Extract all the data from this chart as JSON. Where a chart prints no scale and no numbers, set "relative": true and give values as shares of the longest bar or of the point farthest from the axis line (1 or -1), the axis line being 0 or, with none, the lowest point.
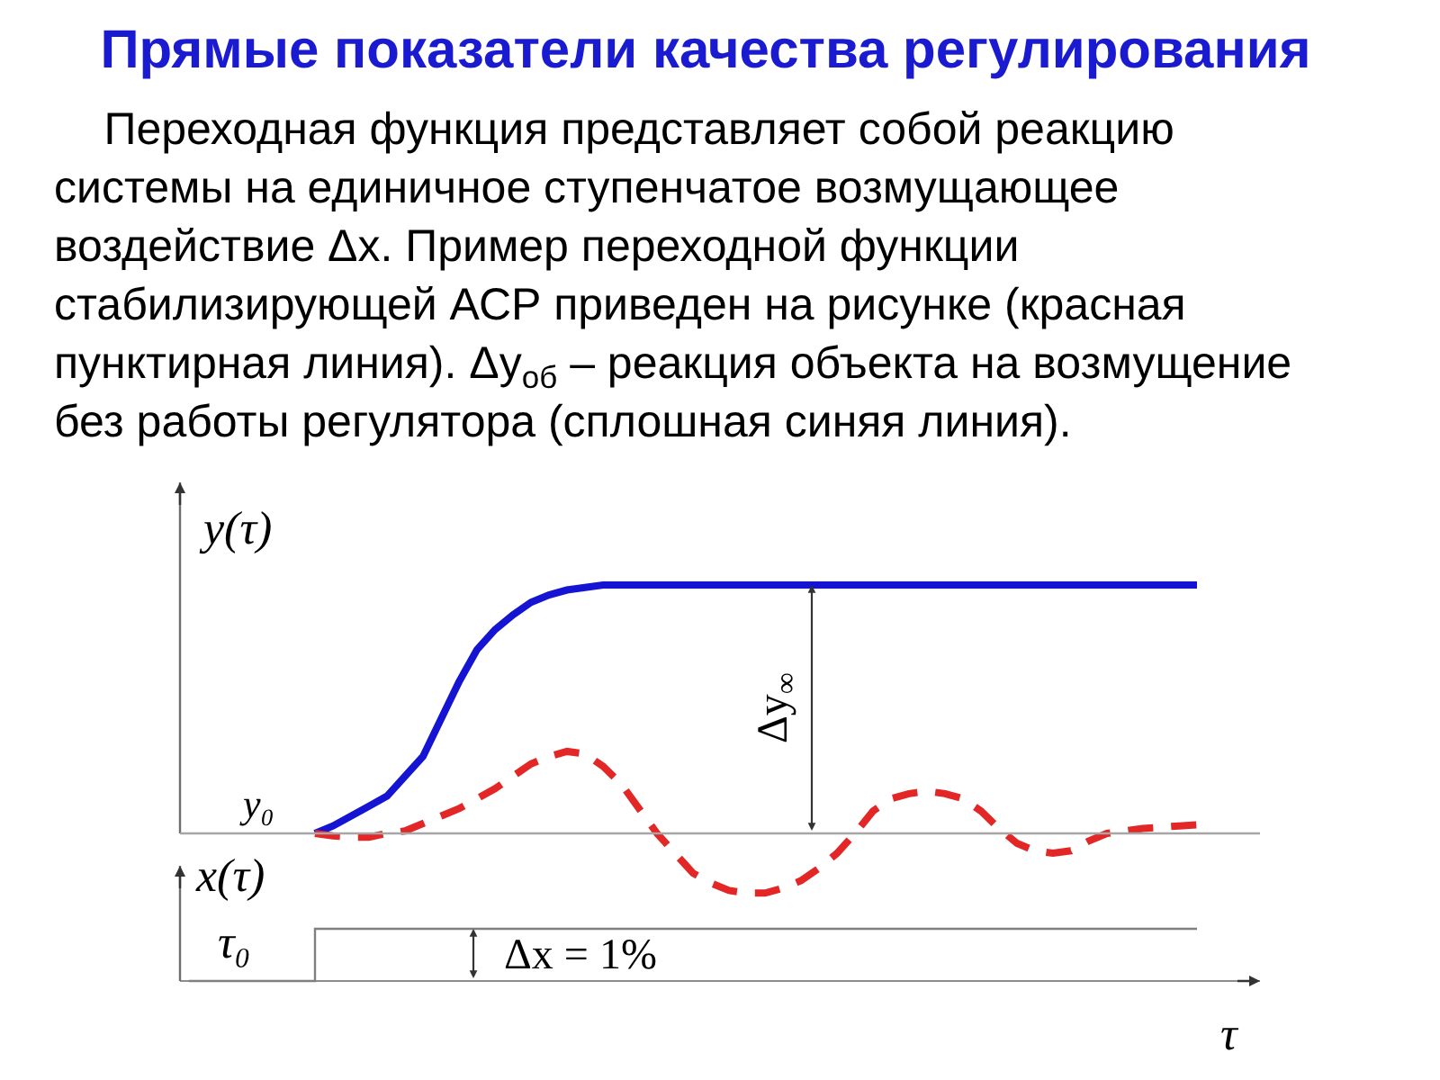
{
  "chart_data": [
    {
      "type": "line",
      "title": "Прямые показатели качества регулирования",
      "subtitle": "Переходная функция представляет собой реакцию системы на единичное ступенчатое возмущающее воздействие Δx. Пример переходной функции стабилизирующей АСР приведен на рисунке (красная пунктирная линия). Δy$_{об}$ – реакция объекта на возмущение без работы регулятора (сплошная синяя линия).",
      "ylabel": "y(τ)",
      "relative": true,
      "categories": [
        null,
        null,
        null,
        null,
        null,
        null,
        null,
        null,
        null,
        null,
        null,
        null,
        null,
        null,
        null,
        null,
        null,
        null,
        null,
        null,
        null,
        null,
        null,
        null,
        null,
        null,
        null,
        null,
        null,
        null,
        null,
        null,
        null,
        null,
        null,
        null,
        null,
        null,
        null,
        null,
        null,
        null,
        null,
        null,
        null,
        null,
        null,
        null,
        null,
        null,
        null,
        null,
        null,
        null,
        null,
        null,
        null,
        null,
        null,
        null
      ],
      "series": [
        {
          "color": "#1414d2",
          "line_style": "solid",
          "values": [
            null,
            null,
            null,
            null,
            null,
            null,
            null,
            0,
            0.03,
            0.07,
            0.11,
            0.15,
            0.23,
            0.31,
            0.46,
            0.61,
            0.74,
            0.82,
            0.88,
            0.93,
            0.96,
            0.98,
            0.99,
            1,
            1,
            1,
            1,
            1,
            1,
            1,
            1,
            1,
            1,
            1,
            1,
            1,
            1,
            1,
            1,
            1,
            1,
            1,
            1,
            1,
            1,
            1,
            1,
            1,
            1,
            1,
            1,
            1,
            1,
            1,
            1,
            1,
            1,
            null,
            null,
            null
          ]
        },
        {
          "color": "#e32626",
          "line_style": "dashed",
          "values": [
            null,
            null,
            null,
            null,
            null,
            null,
            null,
            0,
            -0.01,
            -0.015,
            -0.015,
            0,
            0.01,
            0.04,
            0.07,
            0.1,
            0.14,
            0.18,
            0.23,
            0.28,
            0.31,
            0.33,
            0.32,
            0.27,
            0.2,
            0.1,
            0,
            -0.08,
            -0.16,
            -0.2,
            -0.23,
            -0.24,
            -0.24,
            -0.22,
            -0.19,
            -0.14,
            -0.08,
            0,
            0.09,
            0.14,
            0.16,
            0.17,
            0.16,
            0.14,
            0.09,
            0.02,
            -0.04,
            -0.07,
            -0.08,
            -0.07,
            -0.03,
            0,
            0.01,
            0.02,
            0.025,
            0.03,
            0.035,
            null,
            null,
            null
          ]
        }
      ],
      "ref_lines": [
        {
          "axis": "y",
          "value": 0,
          "label": "y₀",
          "color": "#a6a6a6"
        }
      ],
      "annotations": [
        {
          "text": "Δy$_{∞}$",
          "y": 1
        }
      ]
    },
    {
      "type": "step",
      "ylabel": "x(τ)",
      "xlabel": "τ",
      "relative": true,
      "categories": [
        null,
        null,
        null,
        null,
        null,
        null,
        null,
        null,
        null,
        null,
        null,
        null,
        null,
        null,
        null,
        null,
        null,
        null,
        null,
        null,
        null,
        null,
        null,
        null,
        null,
        null,
        null,
        null,
        null,
        null,
        null,
        null,
        null,
        null,
        null,
        null,
        null,
        null,
        null,
        null,
        null,
        null,
        null,
        null,
        null,
        null,
        null,
        null,
        null,
        null,
        null,
        null,
        null,
        null,
        null,
        null,
        null,
        null,
        null,
        null
      ],
      "series": [
        {
          "color": "#808080",
          "values": [
            0,
            0,
            0,
            0,
            0,
            0,
            0,
            1,
            1,
            1,
            1,
            1,
            1,
            1,
            1,
            1,
            1,
            1,
            1,
            1,
            1,
            1,
            1,
            1,
            1,
            1,
            1,
            1,
            1,
            1,
            1,
            1,
            1,
            1,
            1,
            1,
            1,
            1,
            1,
            1,
            1,
            1,
            1,
            1,
            1,
            1,
            1,
            1,
            1,
            1,
            1,
            1,
            1,
            1,
            1,
            1,
            1,
            null,
            null,
            null
          ]
        }
      ],
      "annotations": [
        {
          "text": "Δx = 1%",
          "y": 1
        },
        "τ₀"
      ]
    }
  ]
}
